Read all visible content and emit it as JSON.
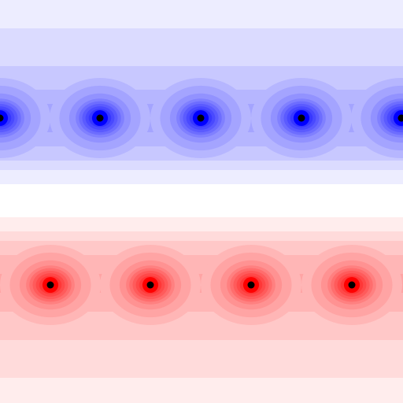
{
  "colors": {
    "positive": "#ff0000",
    "negative": "#0000ff",
    "neutral": "#ffffff",
    "charge_center": "#000000"
  },
  "contour_levels": 14,
  "rows": [
    {
      "sign": "negative",
      "charge_count": 5
    },
    {
      "sign": "positive",
      "charge_count": 4
    }
  ]
}
